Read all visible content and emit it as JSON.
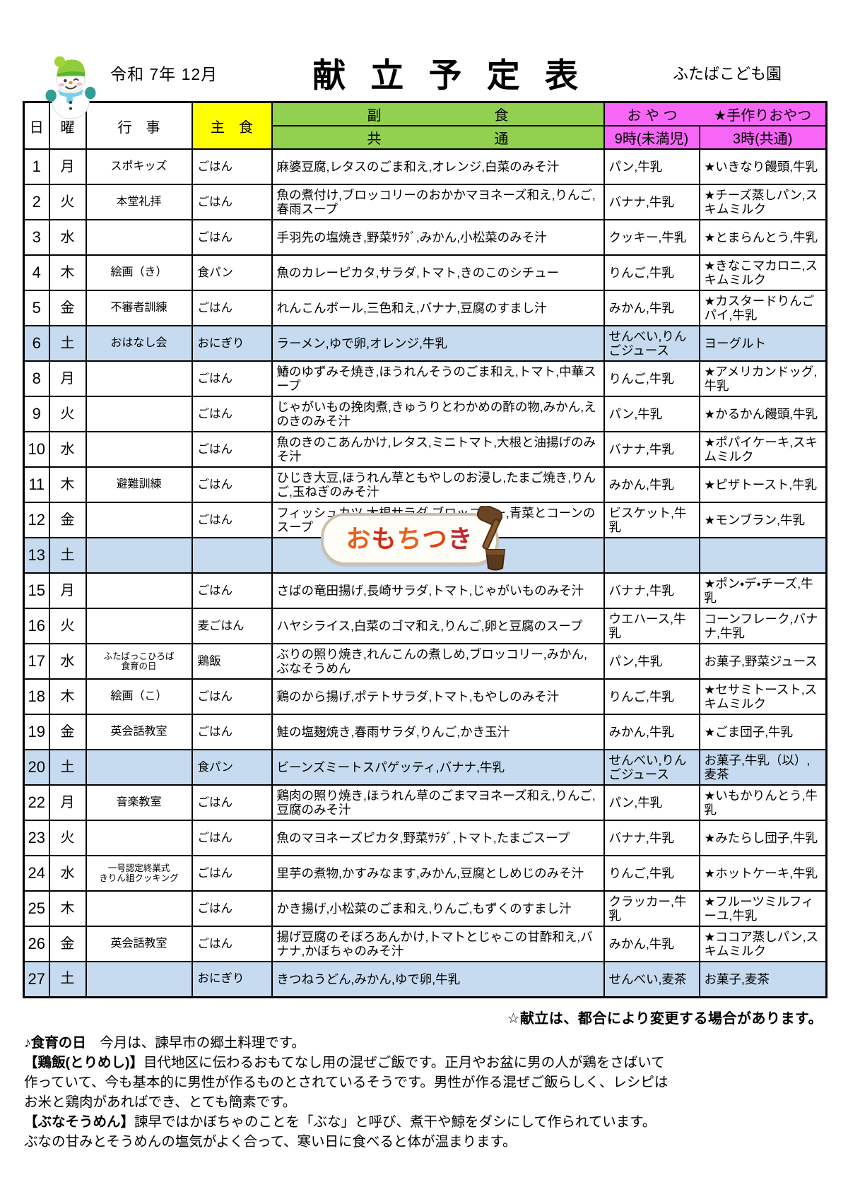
{
  "header": {
    "date": "令和 7年 12月",
    "title": "献立予定表",
    "school": "ふたばこども園"
  },
  "colors": {
    "c-yellow": "#ffff00",
    "c-green": "#92d050",
    "c-pink": "#f866f8",
    "c-saturday": "#c6dbef"
  },
  "table": {
    "header": {
      "day": "日",
      "weekday": "曜",
      "event": "行　事",
      "staple": "主　食",
      "side_top": "副　　　　　　　　食",
      "side_bottom": "共　　　　　　　　通",
      "snack_title": "お や つ",
      "handmade_title": "★手作りおやつ",
      "snack9": "9時(未満児)",
      "snack3": "3時(共通)"
    },
    "rows": [
      {
        "day": "1",
        "weekday": "月",
        "event": "スポキッズ",
        "staple": "ごはん",
        "side": "麻婆豆腐,レタスのごま和え,オレンジ,白菜のみそ汁",
        "snack9": "パン,牛乳",
        "snack3": "★いきなり饅頭,牛乳",
        "saturday": false
      },
      {
        "day": "2",
        "weekday": "火",
        "event": "本堂礼拝",
        "staple": "ごはん",
        "side": "魚の煮付け,ブロッコリーのおかかマヨネーズ和え,りんご,春雨スープ",
        "snack9": "バナナ,牛乳",
        "snack3": "★チーズ蒸しパン,スキムミルク",
        "saturday": false
      },
      {
        "day": "3",
        "weekday": "水",
        "event": "",
        "staple": "ごはん",
        "side": "手羽先の塩焼き,野菜ｻﾗﾀﾞ,みかん,小松菜のみそ汁",
        "snack9": "クッキー,牛乳",
        "snack3": "★とまらんとう,牛乳",
        "saturday": false
      },
      {
        "day": "4",
        "weekday": "木",
        "event": "絵画（き）",
        "staple": "食パン",
        "side": "魚のカレーピカタ,サラダ,トマト,きのこのシチュー",
        "snack9": "りんご,牛乳",
        "snack3": "★きなこマカロニ,スキムミルク",
        "saturday": false
      },
      {
        "day": "5",
        "weekday": "金",
        "event": "不審者訓練",
        "staple": "ごはん",
        "side": "れんこんボール,三色和え,バナナ,豆腐のすまし汁",
        "snack9": "みかん,牛乳",
        "snack3": "★カスタードりんごパイ,牛乳",
        "saturday": false
      },
      {
        "day": "6",
        "weekday": "土",
        "event": "おはなし会",
        "staple": "おにぎり",
        "side": "ラーメン,ゆで卵,オレンジ,牛乳",
        "snack9": "せんべい,りんごジュース",
        "snack3": "ヨーグルト",
        "saturday": true
      },
      {
        "day": "8",
        "weekday": "月",
        "event": "",
        "staple": "ごはん",
        "side": "鰆のゆずみそ焼き,ほうれんそうのごま和え,トマト,中華スープ",
        "snack9": "りんご,牛乳",
        "snack3": "★アメリカンドッグ,牛乳",
        "saturday": false
      },
      {
        "day": "9",
        "weekday": "火",
        "event": "",
        "staple": "ごはん",
        "side": "じゃがいもの挽肉煮,きゅうりとわかめの酢の物,みかん,えのきのみそ汁",
        "snack9": "パン,牛乳",
        "snack3": "★かるかん饅頭,牛乳",
        "saturday": false
      },
      {
        "day": "10",
        "weekday": "水",
        "event": "",
        "staple": "ごはん",
        "side": "魚のきのこあんかけ,レタス,ミニトマト,大根と油揚げのみそ汁",
        "snack9": "バナナ,牛乳",
        "snack3": "★ポパイケーキ,スキムミルク",
        "saturday": false
      },
      {
        "day": "11",
        "weekday": "木",
        "event": "避難訓練",
        "staple": "ごはん",
        "side": "ひじき大豆,ほうれん草ともやしのお浸し,たまご焼き,りんご,玉ねぎのみそ汁",
        "snack9": "みかん,牛乳",
        "snack3": "★ピザトースト,牛乳",
        "saturday": false
      },
      {
        "day": "12",
        "weekday": "金",
        "event": "",
        "staple": "ごはん",
        "side": "フィッシュカツ,大根サラダ,ブロッコリー,青菜とコーンのスープ",
        "snack9": "ビスケット,牛乳",
        "snack3": "★モンブラン,牛乳",
        "saturday": false
      },
      {
        "day": "13",
        "weekday": "土",
        "event": "",
        "staple": "",
        "side": "",
        "snack9": "",
        "snack3": "",
        "saturday": true,
        "decoration": true
      },
      {
        "day": "15",
        "weekday": "月",
        "event": "",
        "staple": "ごはん",
        "side": "さばの竜田揚げ,長崎サラダ,トマト,じゃがいものみそ汁",
        "snack9": "バナナ,牛乳",
        "snack3": "★ポン・デ・チーズ,牛乳",
        "saturday": false
      },
      {
        "day": "16",
        "weekday": "火",
        "event": "",
        "staple": "麦ごはん",
        "side": "ハヤシライス,白菜のゴマ和え,りんご,卵と豆腐のスープ",
        "snack9": "ウエハース,牛乳",
        "snack3": "コーンフレーク,バナナ,牛乳",
        "saturday": false
      },
      {
        "day": "17",
        "weekday": "水",
        "event": "ふたばっこひろば\n食育の日",
        "event_small": true,
        "staple": "鶏飯",
        "side": "ぶりの照り焼き,れんこんの煮しめ,ブロッコリー,みかん,ぶなそうめん",
        "snack9": "パン,牛乳",
        "snack3": "お菓子,野菜ジュース",
        "saturday": false
      },
      {
        "day": "18",
        "weekday": "木",
        "event": "絵画（こ）",
        "staple": "ごはん",
        "side": "鶏のから揚げ,ポテトサラダ,トマト,もやしのみそ汁",
        "snack9": "りんご,牛乳",
        "snack3": "★セサミトースト,スキムミルク",
        "saturday": false
      },
      {
        "day": "19",
        "weekday": "金",
        "event": "英会話教室",
        "staple": "ごはん",
        "side": "鮭の塩麹焼き,春雨サラダ,りんご,かき玉汁",
        "snack9": "みかん,牛乳",
        "snack3": "★ごま団子,牛乳",
        "saturday": false
      },
      {
        "day": "20",
        "weekday": "土",
        "event": "",
        "staple": "食パン",
        "side": "ビーンズミートスパゲッティ,バナナ,牛乳",
        "snack9": "せんべい,りんごジュース",
        "snack3": "お菓子,牛乳（以）,麦茶",
        "saturday": true
      },
      {
        "day": "22",
        "weekday": "月",
        "event": "音楽教室",
        "staple": "ごはん",
        "side": "鶏肉の照り焼き,ほうれん草のごまマヨネーズ和え,りんご,豆腐のみそ汁",
        "snack9": "パン,牛乳",
        "snack3": "★いもかりんとう,牛乳",
        "saturday": false
      },
      {
        "day": "23",
        "weekday": "火",
        "event": "",
        "staple": "ごはん",
        "side": "魚のマヨネーズピカタ,野菜ｻﾗﾀﾞ,トマト,たまごスープ",
        "snack9": "バナナ,牛乳",
        "snack3": "★みたらし団子,牛乳",
        "saturday": false
      },
      {
        "day": "24",
        "weekday": "水",
        "event": "一号認定終業式\nきりん組クッキング",
        "event_small": true,
        "staple": "ごはん",
        "side": "里芋の煮物,かすみなます,みかん,豆腐としめじのみそ汁",
        "snack9": "りんご,牛乳",
        "snack3": "★ホットケーキ,牛乳",
        "saturday": false
      },
      {
        "day": "25",
        "weekday": "木",
        "event": "",
        "staple": "ごはん",
        "side": "かき揚げ,小松菜のごま和え,りんご,もずくのすまし汁",
        "snack9": "クラッカー,牛乳",
        "snack3": "★フルーツミルフィーユ,牛乳",
        "saturday": false
      },
      {
        "day": "26",
        "weekday": "金",
        "event": "英会話教室",
        "staple": "ごはん",
        "side": "揚げ豆腐のそぼろあんかけ,トマトとじゃこの甘酢和え,バナナ,かぼちゃのみそ汁",
        "snack9": "みかん,牛乳",
        "snack3": "★ココア蒸しパン,スキムミルク",
        "saturday": false
      },
      {
        "day": "27",
        "weekday": "土",
        "event": "",
        "staple": "おにぎり",
        "side": "きつねうどん,みかん,ゆで卵,牛乳",
        "snack9": "せんべい,麦茶",
        "snack3": "お菓子,麦茶",
        "saturday": true
      }
    ]
  },
  "decoration": {
    "label": "おもちつき",
    "colors": [
      "#e8611c",
      "#d42d12",
      "#e8611c",
      "#e2430e",
      "#c1272d"
    ]
  },
  "notes": {
    "change": "☆献立は、都合により変更する場合があります。",
    "lines": [
      {
        "bold": "♪食育の日",
        "text": "　今月は、諫早市の郷土料理です。"
      },
      {
        "bold": "【鶏飯(とりめし)】",
        "text": "目代地区に伝わるおもてなし用の混ぜご飯です。正月やお盆に男の人が鶏をさばいて"
      },
      {
        "bold": "",
        "text": "作っていて、今も基本的に男性が作るものとされているそうです。男性が作る混ぜご飯らしく、レシピは"
      },
      {
        "bold": "",
        "text": "お米と鶏肉があればでき、とても簡素です。"
      },
      {
        "bold": "【ぶなそうめん】",
        "text": "諫早ではかぼちゃのことを「ぶな」と呼び、煮干や鯨をダシにして作られています。"
      },
      {
        "bold": "",
        "text": "ぶなの甘みとそうめんの塩気がよく合って、寒い日に食べると体が温まります。"
      }
    ]
  }
}
